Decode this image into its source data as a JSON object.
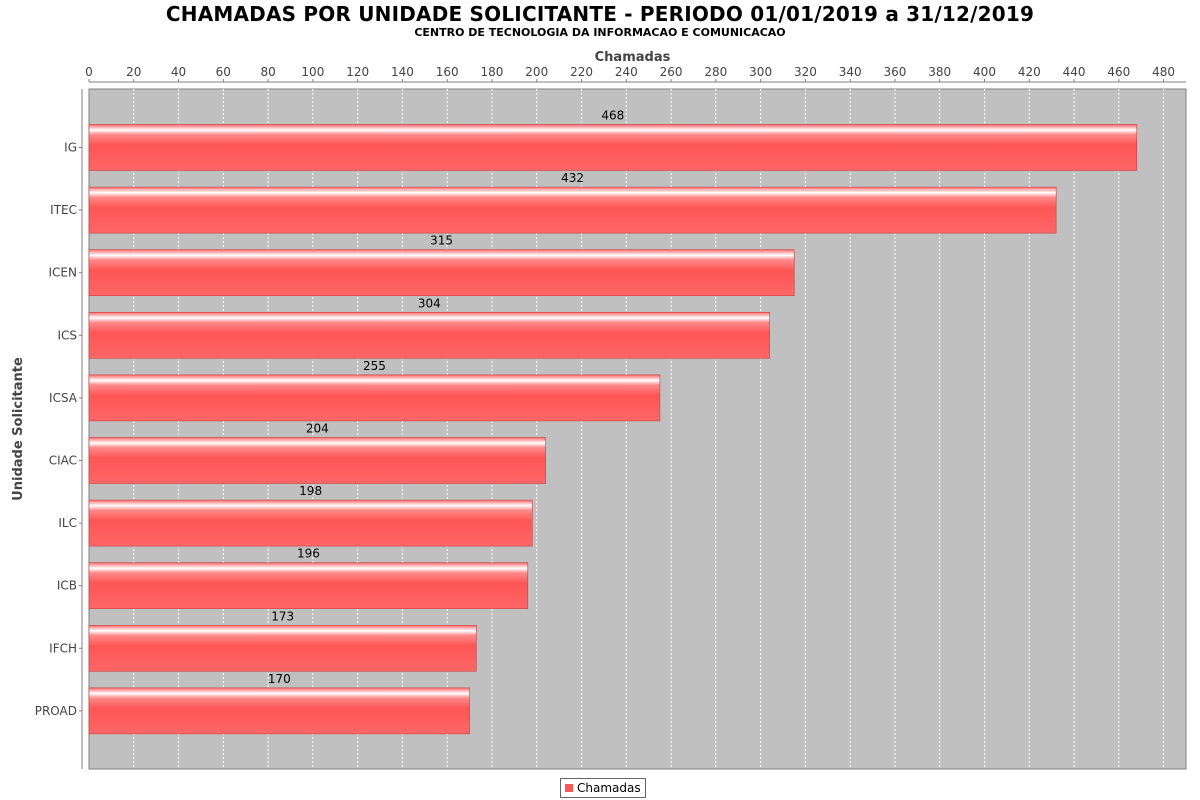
{
  "title": "CHAMADAS POR UNIDADE SOLICITANTE - PERIODO 01/01/2019 a 31/12/2019",
  "subtitle": "CENTRO DE TECNOLOGIA DA INFORMACAO E COMUNICACAO",
  "colors": {
    "bar": "#ff5555",
    "plot_bg": "#c0c0c0",
    "grid": "#ffffff"
  },
  "chart_data": {
    "type": "bar",
    "orientation": "horizontal",
    "title": "CHAMADAS POR UNIDADE SOLICITANTE - PERIODO 01/01/2019 a 31/12/2019",
    "subtitle": "CENTRO DE TECNOLOGIA DA INFORMACAO E COMUNICACAO",
    "xlabel": "Chamadas",
    "ylabel": "Unidade Solicitante",
    "x_axis_position": "top",
    "categories": [
      "IG",
      "ITEC",
      "ICEN",
      "ICS",
      "ICSA",
      "CIAC",
      "ILC",
      "ICB",
      "IFCH",
      "PROAD"
    ],
    "series": [
      {
        "name": "Chamadas",
        "values": [
          468,
          432,
          315,
          304,
          255,
          204,
          198,
          196,
          173,
          170
        ]
      }
    ],
    "data_labels": [
      "468",
      "432",
      "315",
      "304",
      "255",
      "204",
      "198",
      "196",
      "173",
      "170"
    ],
    "xlim": [
      0,
      490
    ],
    "xticks": [
      "0",
      "20",
      "40",
      "60",
      "80",
      "100",
      "120",
      "140",
      "160",
      "180",
      "200",
      "220",
      "240",
      "260",
      "280",
      "300",
      "320",
      "340",
      "360",
      "380",
      "400",
      "420",
      "440",
      "460",
      "480"
    ],
    "grid": true,
    "legend": {
      "placement": "bottom-center",
      "entries": [
        "Chamadas"
      ]
    }
  }
}
